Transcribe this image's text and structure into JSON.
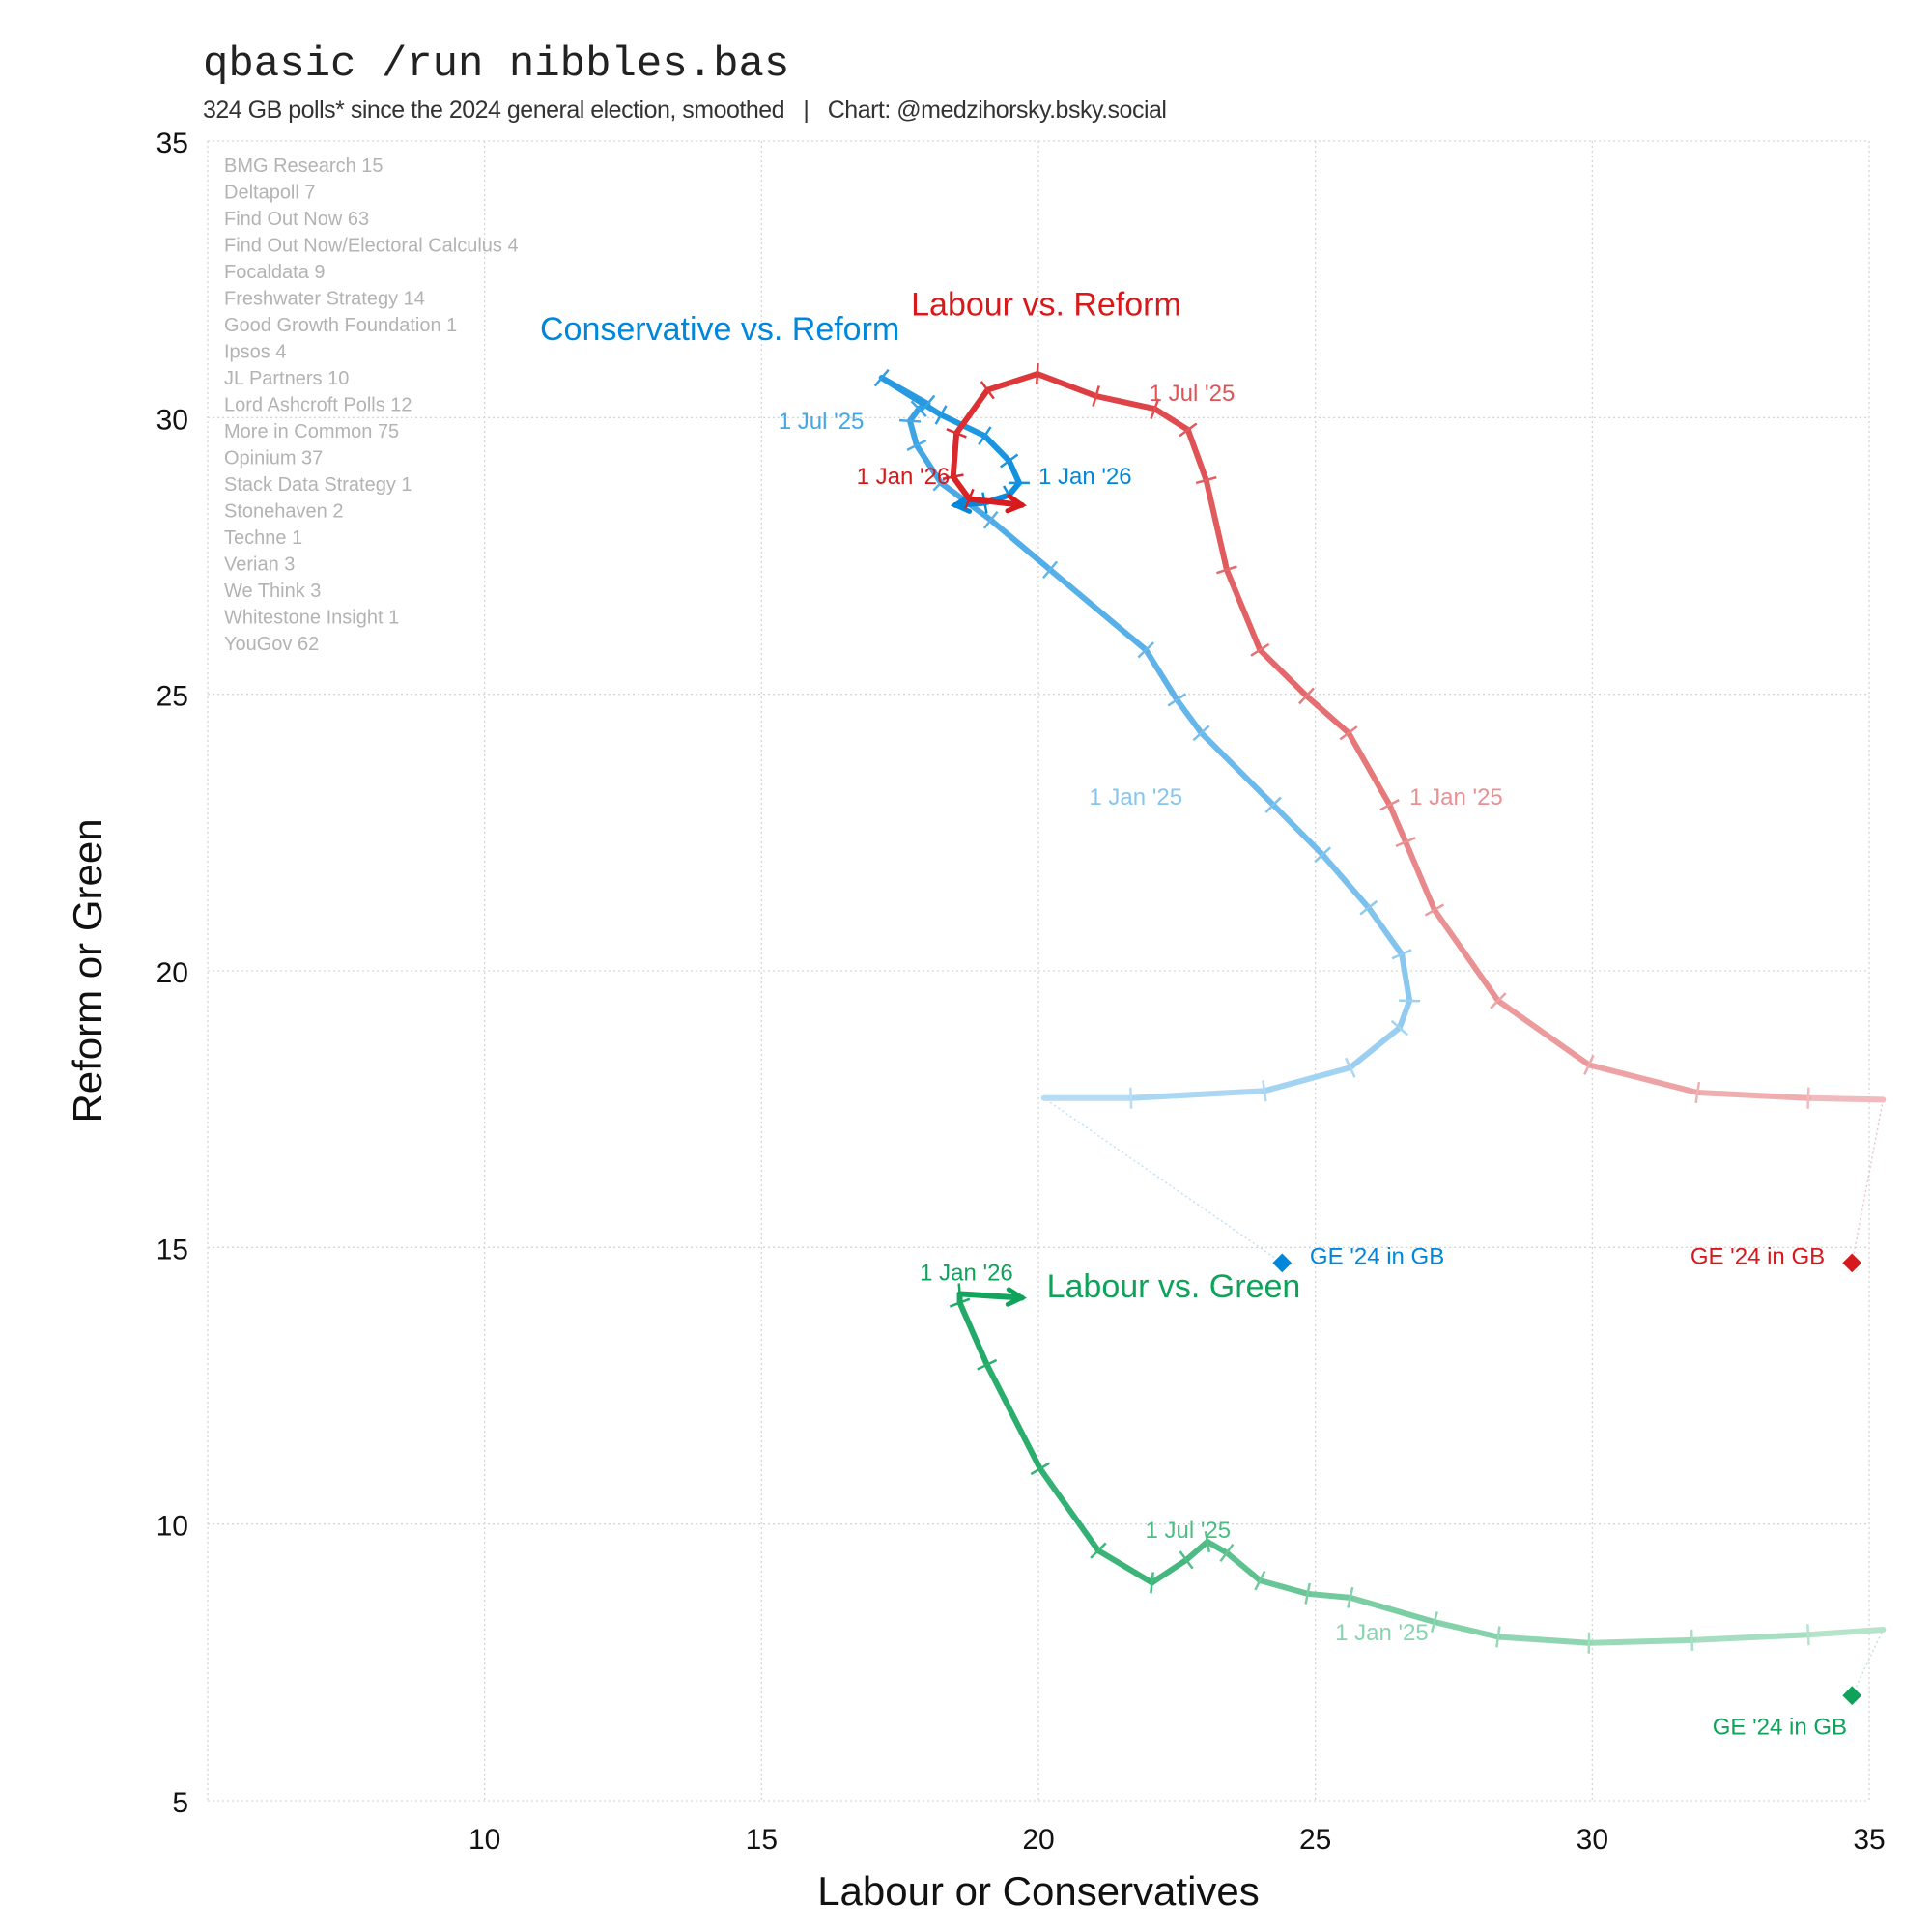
{
  "header": {
    "title": "qbasic /run nibbles.bas",
    "subtitle": "324 GB polls* since the 2024 general election, smoothed   |   Chart: @medzihorsky.bsky.social"
  },
  "pollsters": [
    "BMG Research 15",
    "Deltapoll 7",
    "Find Out Now 63",
    "Find Out Now/Electoral Calculus 4",
    "Focaldata 9",
    "Freshwater Strategy 14",
    "Good Growth Foundation 1",
    "Ipsos 4",
    "JL Partners 10",
    "Lord Ashcroft Polls 12",
    "More in Common 75",
    "Opinium 37",
    "Stack Data Strategy 1",
    "Stonehaven 2",
    "Techne 1",
    "Verian 3",
    "We Think 3",
    "Whitestone Insight 1",
    "YouGov 62"
  ],
  "chart_data": {
    "type": "line",
    "xlabel": "Labour or Conservatives",
    "ylabel": "Reform or Green",
    "xlim": [
      5,
      35
    ],
    "ylim": [
      5,
      35
    ],
    "xticks": [
      "10",
      "15",
      "20",
      "25",
      "30",
      "35"
    ],
    "yticks": [
      "5",
      "10",
      "15",
      "20",
      "25",
      "30",
      "35"
    ],
    "grid": true,
    "series": [
      {
        "name": "Conservative vs. Reform",
        "color": "#0087DC",
        "light": "#bfe0f6",
        "ge_label": "GE '24 in GB",
        "ge": [
          24.4,
          14.72
        ],
        "points": [
          [
            20.1,
            17.7
          ],
          [
            21.67,
            17.7
          ],
          [
            24.08,
            17.83
          ],
          [
            25.63,
            18.25
          ],
          [
            26.52,
            18.97
          ],
          [
            26.7,
            19.46
          ],
          [
            26.56,
            20.3
          ],
          [
            25.96,
            21.14
          ],
          [
            25.13,
            22.1
          ],
          [
            24.24,
            23.0
          ],
          [
            22.94,
            24.3
          ],
          [
            22.5,
            24.9
          ],
          [
            21.94,
            25.8
          ],
          [
            20.21,
            27.25
          ],
          [
            19.14,
            28.15
          ],
          [
            18.24,
            28.82
          ],
          [
            17.8,
            29.5
          ],
          [
            17.68,
            29.94
          ],
          [
            17.84,
            30.16
          ],
          [
            18.0,
            30.25
          ],
          [
            17.17,
            30.72
          ],
          [
            18.24,
            30.05
          ],
          [
            19.03,
            29.67
          ],
          [
            19.47,
            29.22
          ],
          [
            19.65,
            28.82
          ],
          [
            19.47,
            28.6
          ],
          [
            19.03,
            28.46
          ],
          [
            18.5,
            28.42
          ]
        ],
        "dates": [
          "1 Jan '25",
          "1 Jul '25",
          "1 Jan '26"
        ]
      },
      {
        "name": "Labour vs. Reform",
        "color": "#D7191C",
        "light": "#f2c2c4",
        "ge_label": "GE '24 in GB",
        "ge": [
          34.69,
          14.72
        ],
        "points": [
          [
            35.25,
            17.67
          ],
          [
            33.9,
            17.7
          ],
          [
            31.9,
            17.8
          ],
          [
            29.94,
            18.3
          ],
          [
            28.3,
            19.46
          ],
          [
            27.15,
            21.1
          ],
          [
            26.63,
            22.33
          ],
          [
            26.34,
            23.0
          ],
          [
            25.6,
            24.3
          ],
          [
            24.84,
            24.97
          ],
          [
            24.0,
            25.8
          ],
          [
            23.4,
            27.25
          ],
          [
            23.03,
            28.87
          ],
          [
            22.7,
            29.78
          ],
          [
            22.1,
            30.16
          ],
          [
            21.04,
            30.39
          ],
          [
            19.98,
            30.79
          ],
          [
            19.08,
            30.5
          ],
          [
            18.52,
            29.72
          ],
          [
            18.46,
            28.93
          ],
          [
            18.75,
            28.53
          ],
          [
            19.7,
            28.42
          ]
        ],
        "dates": [
          "1 Jan '25",
          "1 Jul '25",
          "1 Jan '26"
        ]
      },
      {
        "name": "Labour vs. Green",
        "color": "#0FA25A",
        "light": "#bfe8d2",
        "ge_label": "GE '24 in GB",
        "ge": [
          34.69,
          6.9
        ],
        "points": [
          [
            35.25,
            8.09
          ],
          [
            33.9,
            8.0
          ],
          [
            31.8,
            7.9
          ],
          [
            29.94,
            7.85
          ],
          [
            28.3,
            7.96
          ],
          [
            27.15,
            8.23
          ],
          [
            25.63,
            8.67
          ],
          [
            24.86,
            8.74
          ],
          [
            24.0,
            8.98
          ],
          [
            23.4,
            9.48
          ],
          [
            23.05,
            9.68
          ],
          [
            22.67,
            9.35
          ],
          [
            22.05,
            8.94
          ],
          [
            21.08,
            9.52
          ],
          [
            20.03,
            11.0
          ],
          [
            19.07,
            12.88
          ],
          [
            18.58,
            14.0
          ],
          [
            18.58,
            14.16
          ],
          [
            19.7,
            14.09
          ]
        ],
        "dates": [
          "1 Jan '25",
          "1 Jul '25",
          "1 Jan '26"
        ]
      }
    ]
  }
}
